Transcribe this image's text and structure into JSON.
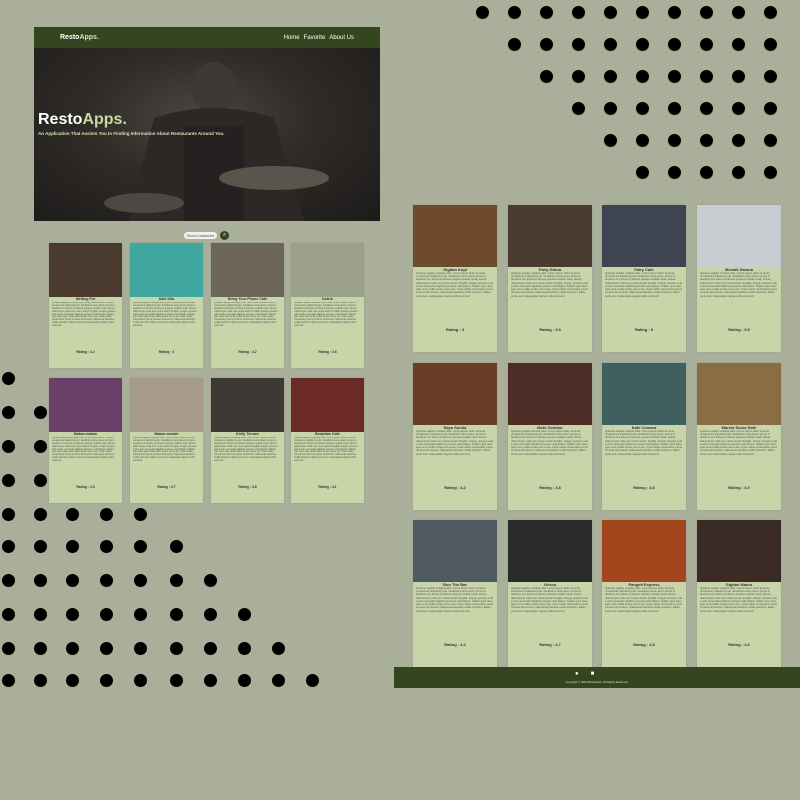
{
  "nav": {
    "brand_primary": "Resto",
    "brand_secondary": "Apps.",
    "links": [
      "Home",
      "Favorite",
      "About Us"
    ]
  },
  "hero": {
    "title_primary": "Resto",
    "title_secondary": "Apps.",
    "subtitle": "An Application That Assists You In Finding Information About Restaurants Around You."
  },
  "search": {
    "placeholder": "Search restaurant",
    "button_icon": "search-icon"
  },
  "lorem": "Quisque sagittis volutpat odio. Lorem ipsum dolor sit amet, consectetur adipiscing elit. Vestibulum ante ipsum primis in faucibus orci luctus et ultrices posuere cubilia curae; Donec ullamcorper nulla non metus auctor fringilla. Integer posuere erat a ante venenatis dapibus posuere velit aliquet. Nullam quis risus eget urna mollis ornare vel eu leo. Cras mattis consectetur purus sit amet fermentum. Maecenas faucibus mollis interdum. Etiam porta sem malesuada magna mollis euismod.",
  "left_cards": [
    {
      "name": "Melting Pot",
      "rating": "Rating : 4.2",
      "img": "#4a3b2e"
    },
    {
      "name": "Kafe Kita",
      "rating": "Rating : 4",
      "img": "#3fa7a0"
    },
    {
      "name": "Bring Your Phone Cafe",
      "rating": "Rating : 4.2",
      "img": "#6b6658"
    },
    {
      "name": "Kafein",
      "rating": "Rating : 4.6",
      "img": "#9aa08a"
    },
    {
      "name": "Makan-makan",
      "rating": "Rating : 4.5",
      "img": "#6b3f6a"
    },
    {
      "name": "Makan-mudah",
      "rating": "Rating : 3.7",
      "img": "#a79b89"
    },
    {
      "name": "Kirity Terrace",
      "rating": "Rating : 3.8",
      "img": "#3e3934"
    },
    {
      "name": "Bonjelam Kafe",
      "rating": "Rating : 4.1",
      "img": "#6b2a26"
    }
  ],
  "right_cards": [
    {
      "name": "Gigitan Kopi",
      "rating": "Rating : 4",
      "img": "#6d4a2c"
    },
    {
      "name": "Fairy Gitera",
      "rating": "Rating : 3.8",
      "img": "#4a3b31"
    },
    {
      "name": "Fairy Cafe",
      "rating": "Rating : 5",
      "img": "#3e4450"
    },
    {
      "name": "Menalli Sarana",
      "rating": "Rating : 3.9",
      "img": "#c9cdd1"
    },
    {
      "name": "Saya Sunda",
      "rating": "Rating : 4.2",
      "img": "#6a3e26"
    },
    {
      "name": "Mohi Gembor",
      "rating": "Rating : 3.8",
      "img": "#4d2d26"
    },
    {
      "name": "Kafe Cemara",
      "rating": "Rating : 3.8",
      "img": "#405f5f"
    },
    {
      "name": "Marsia Sumo Kafe",
      "rating": "Rating : 4.0",
      "img": "#8a6c45"
    },
    {
      "name": "Run The Bar",
      "rating": "Rating : 4.2",
      "img": "#4f5a63"
    },
    {
      "name": "Gesca",
      "rating": "Rating : 4.7",
      "img": "#292c2b"
    },
    {
      "name": "Pangeti Express",
      "rating": "Rating : 4.8",
      "img": "#a3451d"
    },
    {
      "name": "Gigitan Makro",
      "rating": "Rating : 4.0",
      "img": "#3b2b25"
    }
  ],
  "footer": {
    "copyright": "Copyright © 2022 RestoApps. All Rights Reserved."
  }
}
